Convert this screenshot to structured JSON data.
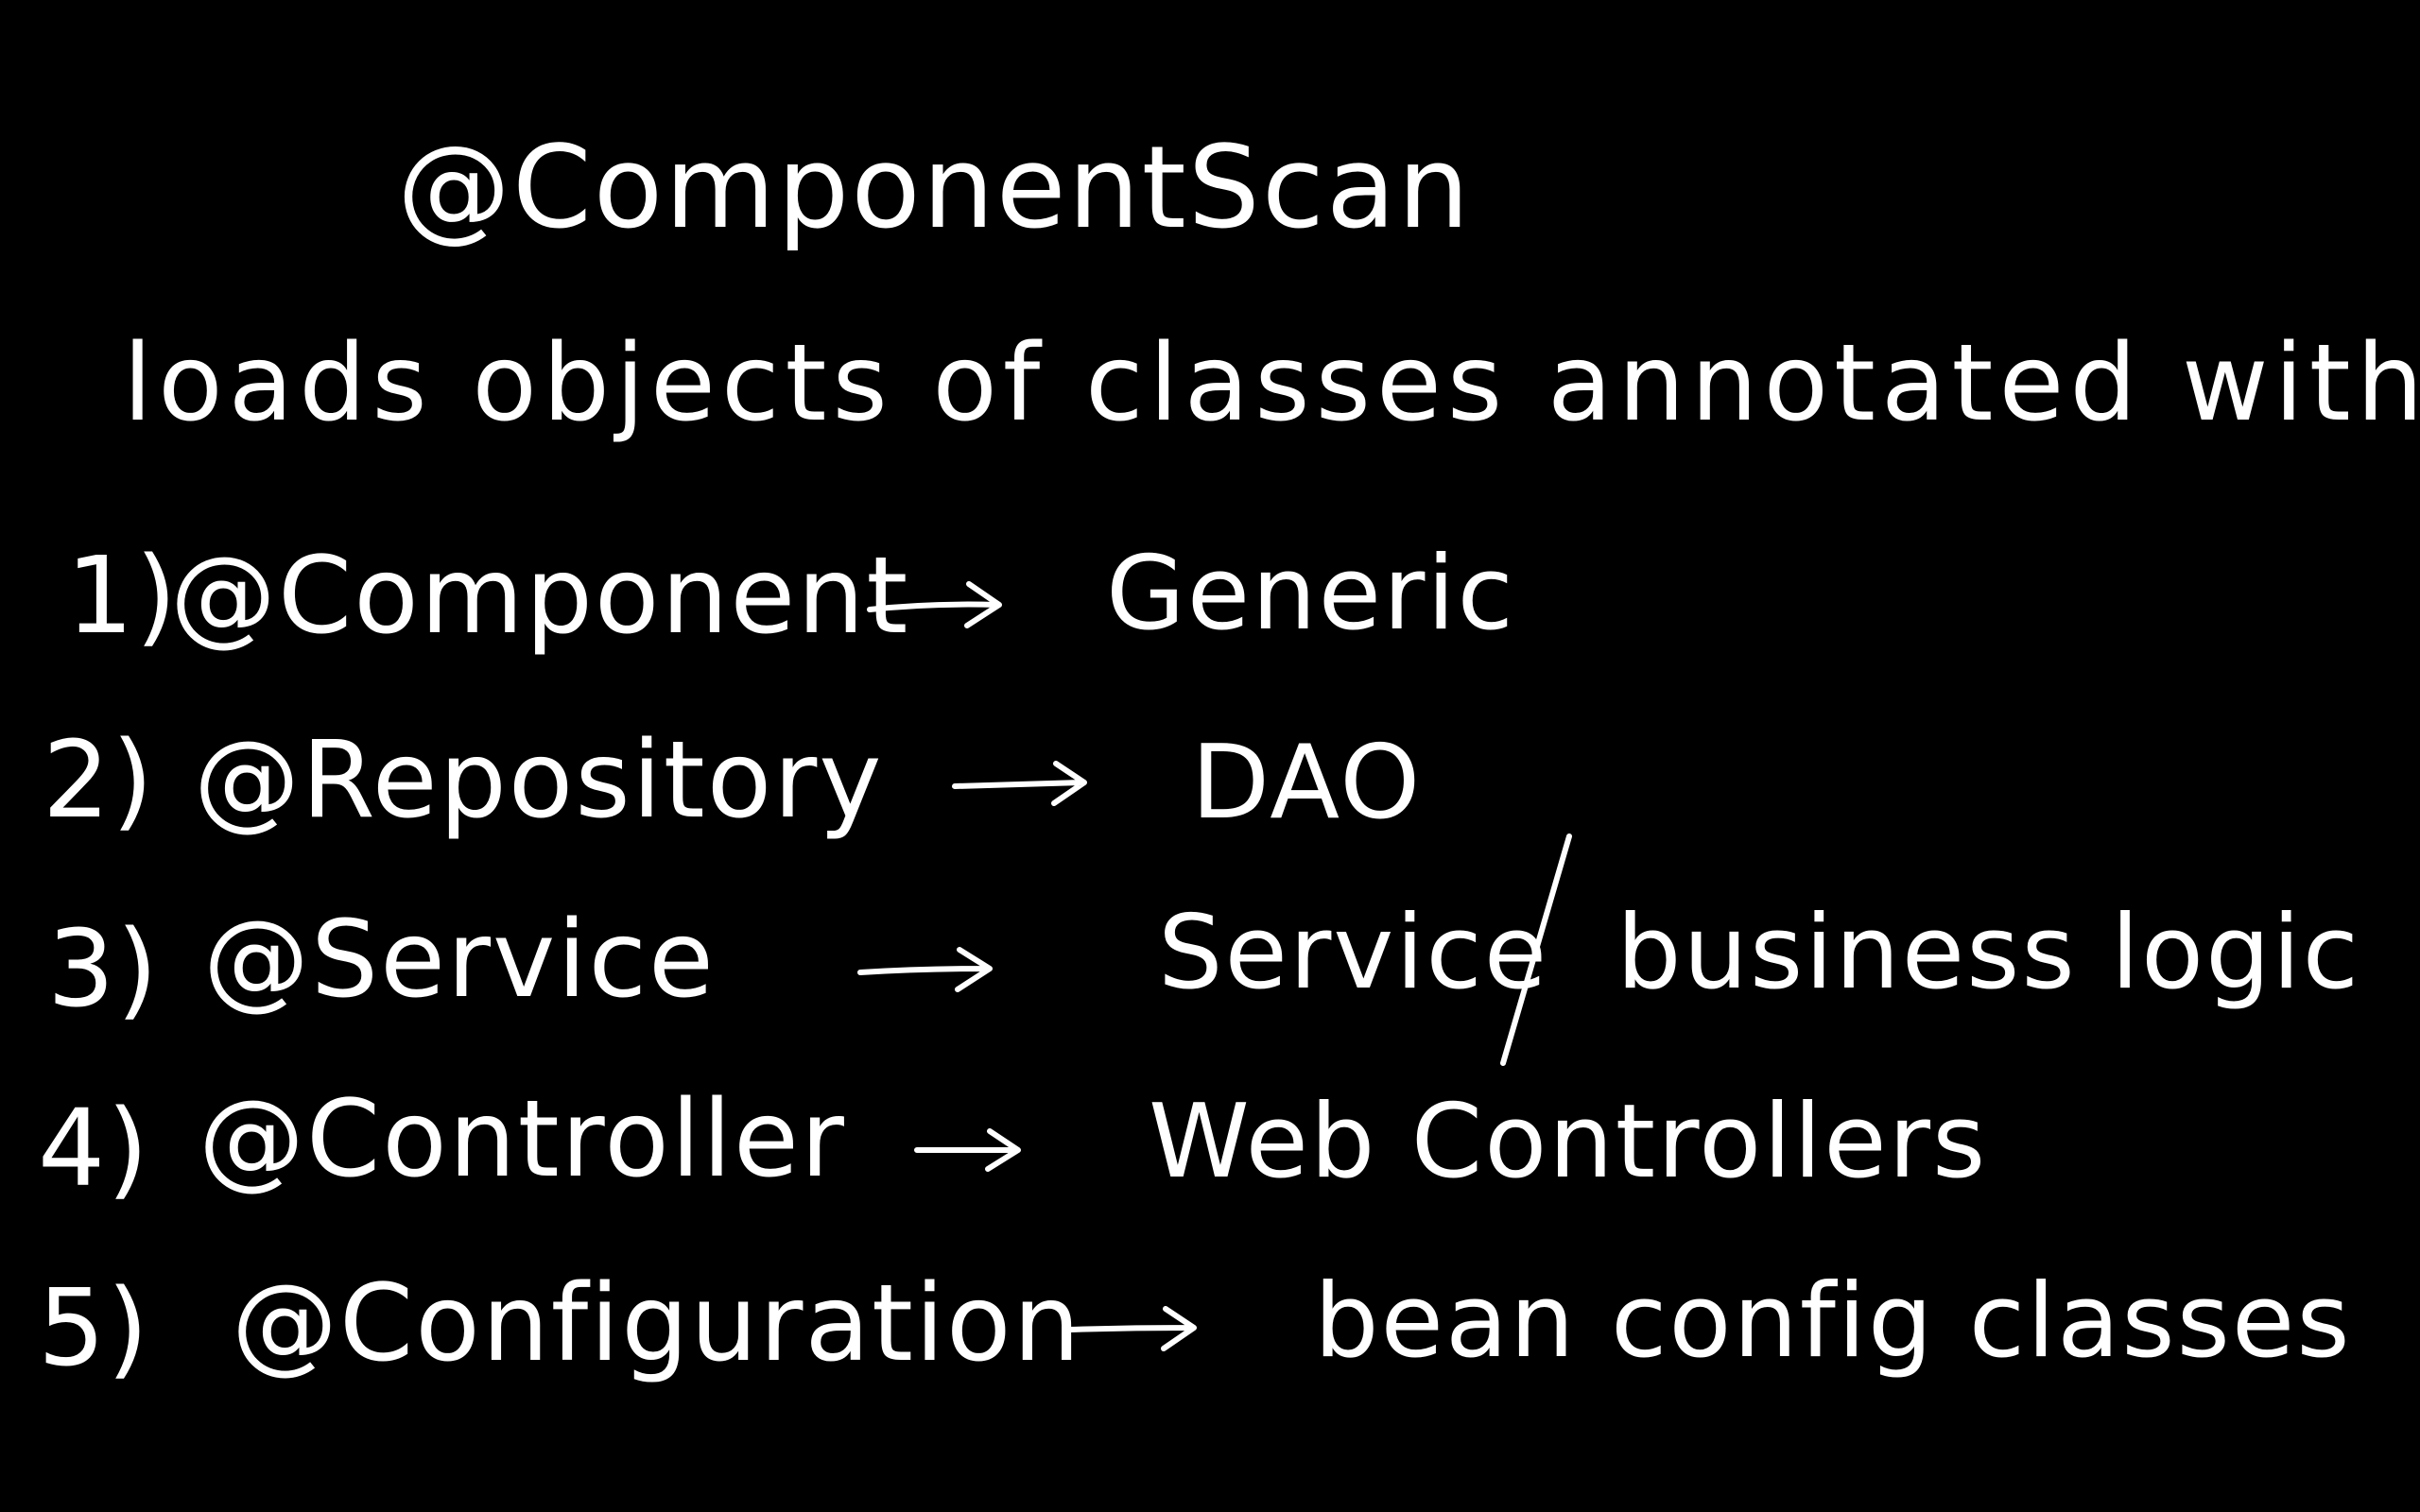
{
  "heading": "@ComponentScan",
  "subheading": "loads objects of classes annotated with:",
  "items": [
    {
      "number": "1)",
      "annotation": "@Component",
      "description": "Generic"
    },
    {
      "number": "2)",
      "annotation": "@Repository",
      "description": "DAO"
    },
    {
      "number": "3)",
      "annotation": "@Service",
      "description": "Service/business logic",
      "description_left": "Service",
      "description_right": "business logic"
    },
    {
      "number": "4)",
      "annotation": "@Controller",
      "description": "Web Controllers"
    },
    {
      "number": "5)",
      "annotation": "@Configuration",
      "description": "bean config classes"
    }
  ],
  "colors": {
    "background": "#000000",
    "ink": "#ffffff"
  },
  "icons": {
    "arrow": "right-arrow-icon"
  }
}
